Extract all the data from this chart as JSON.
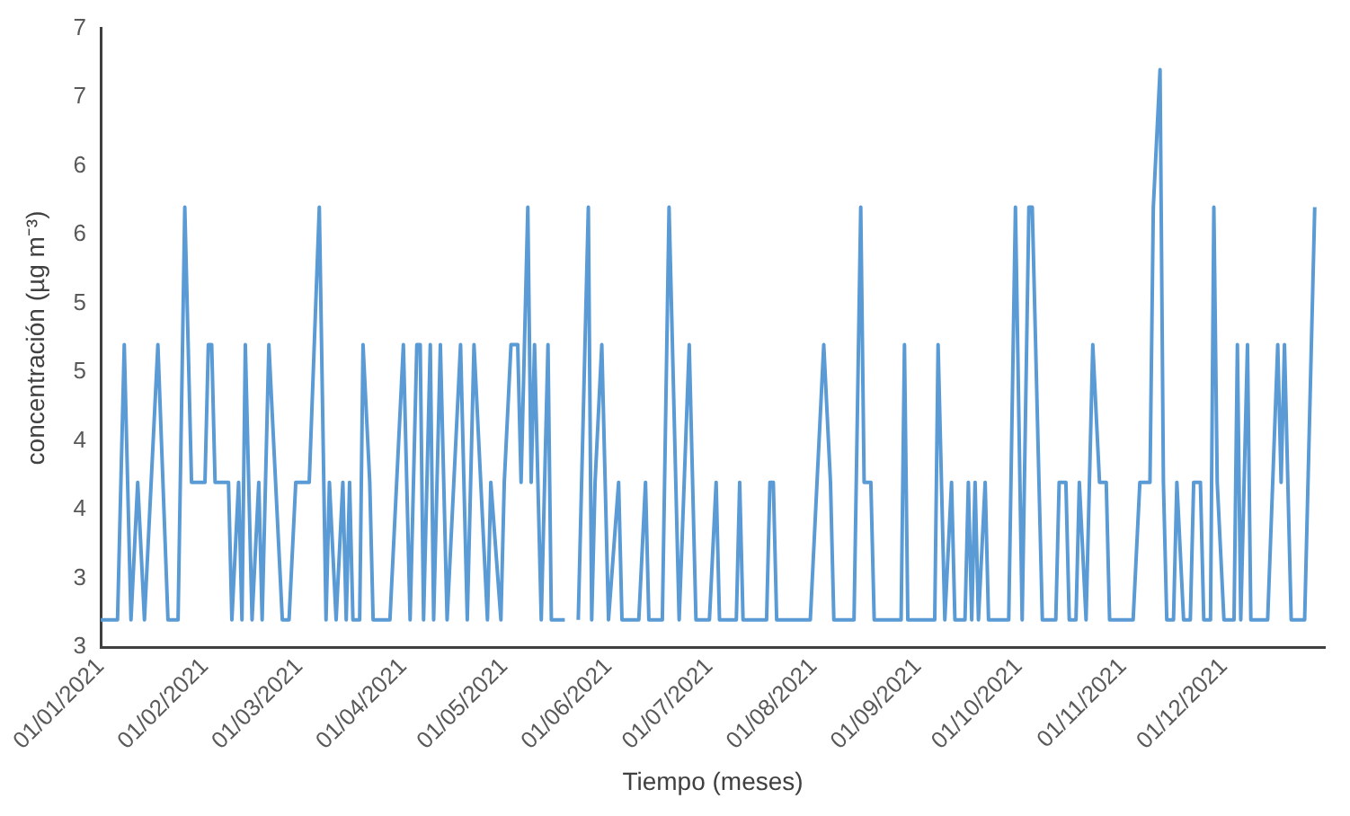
{
  "chart_data": {
    "type": "line",
    "xlabel": "Tiempo (meses)",
    "ylabel": "concentración (µg m⁻³)",
    "x": [
      "2021-01-01",
      "2021-01-06",
      "2021-01-08",
      "2021-01-10",
      "2021-01-12",
      "2021-01-14",
      "2021-01-16",
      "2021-01-18",
      "2021-01-21",
      "2021-01-24",
      "2021-01-26",
      "2021-01-28",
      "2021-02-01",
      "2021-02-02",
      "2021-02-03",
      "2021-02-04",
      "2021-02-08",
      "2021-02-09",
      "2021-02-11",
      "2021-02-12",
      "2021-02-13",
      "2021-02-15",
      "2021-02-17",
      "2021-02-18",
      "2021-02-20",
      "2021-02-22",
      "2021-02-24",
      "2021-02-26",
      "2021-02-28",
      "2021-03-04",
      "2021-03-07",
      "2021-03-09",
      "2021-03-10",
      "2021-03-12",
      "2021-03-14",
      "2021-03-15",
      "2021-03-16",
      "2021-03-17",
      "2021-03-19",
      "2021-03-20",
      "2021-03-22",
      "2021-03-23",
      "2021-03-28",
      "2021-03-30",
      "2021-04-01",
      "2021-04-03",
      "2021-04-05",
      "2021-04-06",
      "2021-04-07",
      "2021-04-09",
      "2021-04-10",
      "2021-04-12",
      "2021-04-14",
      "2021-04-16",
      "2021-04-18",
      "2021-04-20",
      "2021-04-22",
      "2021-04-24",
      "2021-04-26",
      "2021-04-27",
      "2021-04-30",
      "2021-05-01",
      "2021-05-03",
      "2021-05-05",
      "2021-05-06",
      "2021-05-08",
      "2021-05-09",
      "2021-05-10",
      "2021-05-12",
      "2021-05-14",
      "2021-05-15",
      "2021-05-19",
      "2021-05-21",
      "2021-05-23",
      "2021-05-26",
      "2021-05-27",
      "2021-05-28",
      "2021-05-30",
      "2021-06-01",
      "2021-06-04",
      "2021-06-05",
      "2021-06-10",
      "2021-06-12",
      "2021-06-13",
      "2021-06-17",
      "2021-06-19",
      "2021-06-21",
      "2021-06-22",
      "2021-06-25",
      "2021-06-27",
      "2021-07-01",
      "2021-07-03",
      "2021-07-04",
      "2021-07-09",
      "2021-07-10",
      "2021-07-11",
      "2021-07-18",
      "2021-07-19",
      "2021-07-20",
      "2021-07-21",
      "2021-07-31",
      "2021-08-02",
      "2021-08-04",
      "2021-08-06",
      "2021-08-07",
      "2021-08-13",
      "2021-08-15",
      "2021-08-16",
      "2021-08-18",
      "2021-08-19",
      "2021-08-27",
      "2021-08-28",
      "2021-08-29",
      "2021-09-06",
      "2021-09-07",
      "2021-09-09",
      "2021-09-11",
      "2021-09-12",
      "2021-09-15",
      "2021-09-16",
      "2021-09-17",
      "2021-09-18",
      "2021-09-19",
      "2021-09-21",
      "2021-09-22",
      "2021-09-28",
      "2021-09-30",
      "2021-10-02",
      "2021-10-04",
      "2021-10-05",
      "2021-10-07",
      "2021-10-08",
      "2021-10-12",
      "2021-10-13",
      "2021-10-15",
      "2021-10-16",
      "2021-10-18",
      "2021-10-19",
      "2021-10-21",
      "2021-10-23",
      "2021-10-25",
      "2021-10-27",
      "2021-10-28",
      "2021-11-04",
      "2021-11-06",
      "2021-11-09",
      "2021-11-10",
      "2021-11-12",
      "2021-11-13",
      "2021-11-14",
      "2021-11-16",
      "2021-11-17",
      "2021-11-19",
      "2021-11-21",
      "2021-11-22",
      "2021-11-24",
      "2021-11-25",
      "2021-11-27",
      "2021-11-28",
      "2021-11-29",
      "2021-12-01",
      "2021-12-04",
      "2021-12-05",
      "2021-12-06",
      "2021-12-08",
      "2021-12-09",
      "2021-12-14",
      "2021-12-17",
      "2021-12-18",
      "2021-12-19",
      "2021-12-21",
      "2021-12-25",
      "2021-12-26",
      "2021-12-28"
    ],
    "series": [
      {
        "color": "#5b9bd5",
        "values": [
          3.2,
          3.2,
          5.2,
          3.2,
          4.2,
          3.2,
          4.2,
          5.2,
          3.2,
          3.2,
          6.2,
          4.2,
          4.2,
          5.2,
          5.2,
          4.2,
          4.2,
          3.2,
          4.2,
          3.2,
          5.2,
          3.2,
          4.2,
          3.2,
          5.2,
          4.2,
          3.2,
          3.2,
          4.2,
          4.2,
          6.2,
          3.2,
          4.2,
          3.2,
          4.2,
          3.2,
          4.2,
          3.2,
          3.2,
          5.2,
          4.2,
          3.2,
          3.2,
          4.2,
          5.2,
          3.2,
          5.2,
          5.2,
          3.2,
          5.2,
          3.2,
          5.2,
          3.2,
          4.2,
          5.2,
          3.2,
          5.2,
          4.2,
          3.2,
          4.2,
          3.2,
          4.2,
          5.2,
          5.2,
          4.2,
          6.2,
          4.2,
          5.2,
          3.2,
          5.2,
          3.2,
          3.2,
          null,
          3.2,
          6.2,
          3.2,
          4.2,
          5.2,
          3.2,
          4.2,
          3.2,
          3.2,
          4.2,
          3.2,
          3.2,
          6.2,
          4.2,
          3.2,
          5.2,
          3.2,
          3.2,
          4.2,
          3.2,
          3.2,
          4.2,
          3.2,
          3.2,
          4.2,
          4.2,
          3.2,
          3.2,
          4.2,
          5.2,
          4.2,
          3.2,
          3.2,
          6.2,
          4.2,
          4.2,
          3.2,
          3.2,
          5.2,
          3.2,
          3.2,
          5.2,
          3.2,
          4.2,
          3.2,
          3.2,
          4.2,
          3.2,
          4.2,
          3.2,
          4.2,
          3.2,
          3.2,
          6.2,
          3.2,
          6.2,
          6.2,
          4.2,
          3.2,
          3.2,
          4.2,
          4.2,
          3.2,
          3.2,
          4.2,
          3.2,
          5.2,
          4.2,
          4.2,
          3.2,
          3.2,
          4.2,
          4.2,
          6.2,
          7.2,
          4.2,
          3.2,
          3.2,
          4.2,
          3.2,
          3.2,
          4.2,
          4.2,
          3.2,
          3.2,
          6.2,
          4.2,
          3.2,
          3.2,
          5.2,
          3.2,
          5.2,
          3.2,
          3.2,
          5.2,
          4.2,
          5.2,
          3.2,
          3.2,
          4.2,
          6.2
        ]
      }
    ],
    "xlim": [
      "2021-01-01",
      "2021-12-31"
    ],
    "xticks": [
      {
        "value": "2021-01-01",
        "label": "01/01/2021"
      },
      {
        "value": "2021-02-01",
        "label": "01/02/2021"
      },
      {
        "value": "2021-03-01",
        "label": "01/03/2021"
      },
      {
        "value": "2021-04-01",
        "label": "01/04/2021"
      },
      {
        "value": "2021-05-01",
        "label": "01/05/2021"
      },
      {
        "value": "2021-06-01",
        "label": "01/06/2021"
      },
      {
        "value": "2021-07-01",
        "label": "01/07/2021"
      },
      {
        "value": "2021-08-01",
        "label": "01/08/2021"
      },
      {
        "value": "2021-09-01",
        "label": "01/09/2021"
      },
      {
        "value": "2021-10-01",
        "label": "01/10/2021"
      },
      {
        "value": "2021-11-01",
        "label": "01/11/2021"
      },
      {
        "value": "2021-12-01",
        "label": "01/12/2021"
      }
    ],
    "ylim": [
      3,
      7.5
    ],
    "yticks": [
      {
        "value": 3,
        "label": "3"
      },
      {
        "value": 3.5,
        "label": "3"
      },
      {
        "value": 4,
        "label": "4"
      },
      {
        "value": 4.5,
        "label": "4"
      },
      {
        "value": 5,
        "label": "5"
      },
      {
        "value": 5.5,
        "label": "5"
      },
      {
        "value": 6,
        "label": "6"
      },
      {
        "value": 6.5,
        "label": "6"
      },
      {
        "value": 7,
        "label": "7"
      },
      {
        "value": 7.5,
        "label": "7"
      }
    ],
    "grid": false,
    "legend": false,
    "marker": "none",
    "line_style": "solid"
  }
}
